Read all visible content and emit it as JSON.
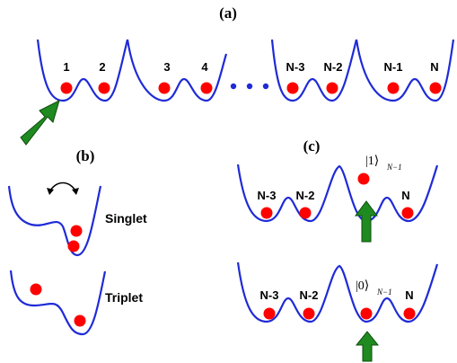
{
  "panel_a": {
    "label": "(a)",
    "site_labels": [
      "1",
      "2",
      "3",
      "4",
      "N-3",
      "N-2",
      "N-1",
      "N"
    ],
    "ellipsis": "• • •"
  },
  "panel_b": {
    "label": "(b)",
    "singlet": "Singlet",
    "triplet": "Triplet"
  },
  "panel_c": {
    "label": "(c)",
    "top_site_labels": [
      "N-3",
      "N-2",
      "N"
    ],
    "bottom_site_labels": [
      "N-3",
      "N-2",
      "N"
    ],
    "ket_top": "|1⟩",
    "ket_bottom": "|0⟩",
    "ket_subscript": "N−1"
  },
  "colors": {
    "well": "#1f2bd6",
    "particle": "#ff0000",
    "arrow": "#1f8a1f"
  }
}
